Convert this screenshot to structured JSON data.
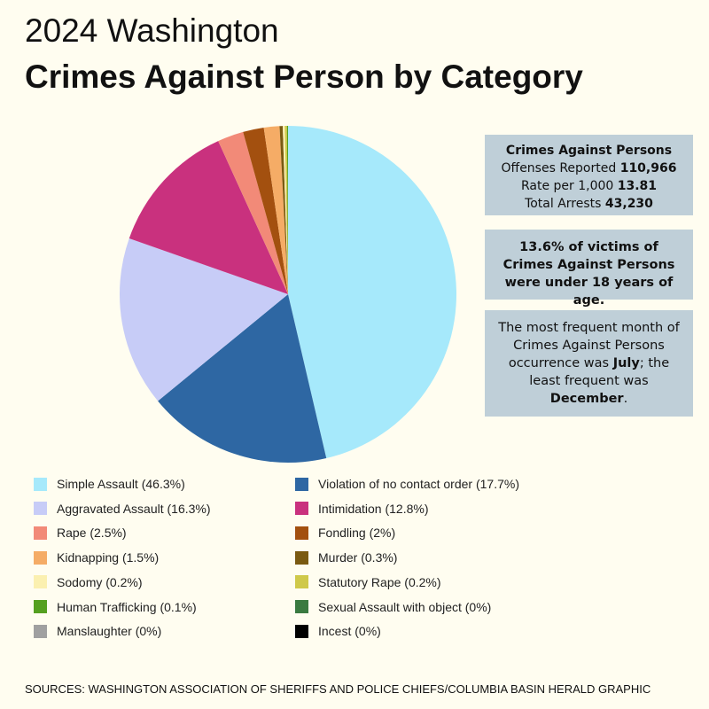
{
  "header": {
    "line1": "2024 Washington",
    "line2": "Crimes Against Person by Category"
  },
  "chart_data": {
    "type": "pie",
    "title": "Crimes Against Person by Category",
    "slices": [
      {
        "label": "Simple Assault (46.3%)",
        "value": 46.3,
        "color": "#a6e9fb"
      },
      {
        "label": "Violation of no contact order (17.7%)",
        "value": 17.7,
        "color": "#2e67a3"
      },
      {
        "label": "Aggravated Assault  (16.3%)",
        "value": 16.3,
        "color": "#c7ccf7"
      },
      {
        "label": "Intimidation (12.8%)",
        "value": 12.8,
        "color": "#c9317e"
      },
      {
        "label": "Rape (2.5%)",
        "value": 2.5,
        "color": "#f28a78"
      },
      {
        "label": "Fondling (2%)",
        "value": 2,
        "color": "#a3500f"
      },
      {
        "label": "Kidnapping (1.5%)",
        "value": 1.5,
        "color": "#f5ac66"
      },
      {
        "label": "Murder (0.3%)",
        "value": 0.3,
        "color": "#7a5a12"
      },
      {
        "label": "Sodomy  (0.2%)",
        "value": 0.2,
        "color": "#fbf0b0"
      },
      {
        "label": "Statutory Rape (0.2%)",
        "value": 0.2,
        "color": "#cfc94a"
      },
      {
        "label": "Human Trafficking (0.1%)",
        "value": 0.1,
        "color": "#55a020"
      },
      {
        "label": "Sexual Assault with object (0%)",
        "value": 0,
        "color": "#3a7a40"
      },
      {
        "label": "Manslaughter (0%)",
        "value": 0,
        "color": "#a0a0a0"
      },
      {
        "label": "Incest (0%)",
        "value": 0,
        "color": "#000000"
      }
    ],
    "legend_order": [
      0,
      1,
      2,
      3,
      4,
      5,
      6,
      7,
      8,
      9,
      10,
      11,
      12,
      13
    ]
  },
  "boxes": {
    "stats": {
      "title": "Crimes Against Persons",
      "offenses_label": "Offenses Reported ",
      "offenses": "110,966",
      "rate_label": "Rate per 1,000 ",
      "rate": "13.81",
      "arrests_label": "Total Arrests ",
      "arrests": "43,230"
    },
    "victims": "13.6% of victims of Crimes Against Persons were under 18 years of age.",
    "month": {
      "pre": "The most frequent month of Crimes Against Persons occurrence was ",
      "most": "July",
      "mid": "; the least frequent was ",
      "least": "December",
      "post": "."
    }
  },
  "source": "SOURCES: WASHINGTON ASSOCIATION OF SHERIFFS AND POLICE CHIEFS/COLUMBIA BASIN HERALD GRAPHIC"
}
